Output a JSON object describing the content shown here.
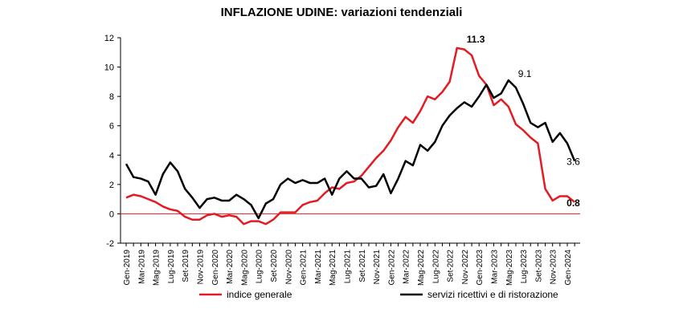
{
  "chart_data": {
    "type": "line",
    "title": "INFLAZIONE UDINE: variazioni tendenziali",
    "categories": [
      "Gen-2019",
      null,
      "Mar-2019",
      null,
      "Mag-2019",
      null,
      "Lug-2019",
      null,
      "Set-2019",
      null,
      "Nov-2019",
      null,
      "Gen-2020",
      null,
      "Mar-2020",
      null,
      "Mag-2020",
      null,
      "Lug-2020",
      null,
      "Set-2020",
      null,
      "Nov-2020",
      null,
      "Gen-2021",
      null,
      "Mar-2021",
      null,
      "Mag-2021",
      null,
      "Lug-2021",
      null,
      "Set-2021",
      null,
      "Nov-2021",
      null,
      "Gen-2022",
      null,
      "Mar-2022",
      null,
      "Mag-2022",
      null,
      "Lug-2022",
      null,
      "Set-2022",
      null,
      "Nov-2022",
      null,
      "Gen-2023",
      null,
      "Mar-2023",
      null,
      "Mag-2023",
      null,
      "Lug-2023",
      null,
      "Set-2023",
      null,
      "Nov-2023",
      null,
      "Gen-2024",
      null
    ],
    "series": [
      {
        "name": "indice generale",
        "color": "#e31b23",
        "values": [
          1.1,
          1.3,
          1.2,
          1.0,
          0.8,
          0.5,
          0.3,
          0.2,
          -0.2,
          -0.4,
          -0.4,
          -0.1,
          0.0,
          -0.2,
          -0.1,
          -0.2,
          -0.7,
          -0.5,
          -0.5,
          -0.7,
          -0.4,
          0.1,
          0.1,
          0.1,
          0.6,
          0.8,
          0.9,
          1.4,
          1.8,
          1.7,
          2.1,
          2.2,
          2.6,
          3.2,
          3.8,
          4.3,
          5.0,
          5.9,
          6.6,
          6.2,
          7.0,
          8.0,
          7.8,
          8.3,
          9.0,
          11.3,
          11.2,
          10.8,
          9.4,
          8.8,
          7.4,
          7.8,
          7.3,
          6.1,
          5.7,
          5.2,
          4.8,
          1.7,
          0.9,
          1.2,
          1.2,
          0.8
        ],
        "value_labels": [
          null,
          null,
          null,
          null,
          null,
          null,
          null,
          null,
          null,
          null,
          null,
          null,
          null,
          null,
          null,
          null,
          null,
          null,
          null,
          null,
          null,
          null,
          null,
          null,
          null,
          null,
          null,
          null,
          null,
          null,
          null,
          null,
          null,
          null,
          null,
          null,
          null,
          null,
          null,
          null,
          null,
          null,
          null,
          null,
          null,
          "11.3",
          null,
          null,
          null,
          null,
          null,
          null,
          null,
          null,
          null,
          null,
          null,
          null,
          null,
          null,
          null,
          "0.8"
        ]
      },
      {
        "name": "servizi ricettivi e di ristorazione",
        "color": "#000000",
        "values": [
          3.4,
          2.5,
          2.4,
          2.2,
          1.3,
          2.7,
          3.5,
          2.9,
          1.7,
          1.1,
          0.4,
          1.0,
          1.1,
          0.9,
          0.9,
          1.3,
          1.0,
          0.6,
          -0.3,
          0.7,
          1.0,
          2.0,
          2.4,
          2.1,
          2.3,
          2.1,
          2.1,
          2.4,
          1.3,
          2.4,
          2.9,
          2.4,
          2.4,
          1.8,
          1.9,
          2.7,
          1.4,
          2.4,
          3.6,
          3.3,
          4.7,
          4.3,
          4.9,
          6.0,
          6.7,
          7.2,
          7.6,
          7.3,
          8.0,
          8.8,
          7.9,
          8.2,
          9.1,
          8.6,
          7.5,
          6.2,
          5.9,
          6.2,
          4.9,
          5.5,
          4.8,
          3.6
        ],
        "value_labels": [
          null,
          null,
          null,
          null,
          null,
          null,
          null,
          null,
          null,
          null,
          null,
          null,
          null,
          null,
          null,
          null,
          null,
          null,
          null,
          null,
          null,
          null,
          null,
          null,
          null,
          null,
          null,
          null,
          null,
          null,
          null,
          null,
          null,
          null,
          null,
          null,
          null,
          null,
          null,
          null,
          null,
          null,
          null,
          null,
          null,
          null,
          null,
          null,
          null,
          null,
          null,
          null,
          "9.1",
          null,
          null,
          null,
          null,
          null,
          null,
          null,
          null,
          "3.6"
        ]
      }
    ],
    "ylim": [
      -2,
      12
    ],
    "yticks": [
      -2,
      0,
      2,
      4,
      6,
      8,
      10,
      12
    ],
    "zero_line_color": "#e31b23",
    "legend": "bottom"
  }
}
